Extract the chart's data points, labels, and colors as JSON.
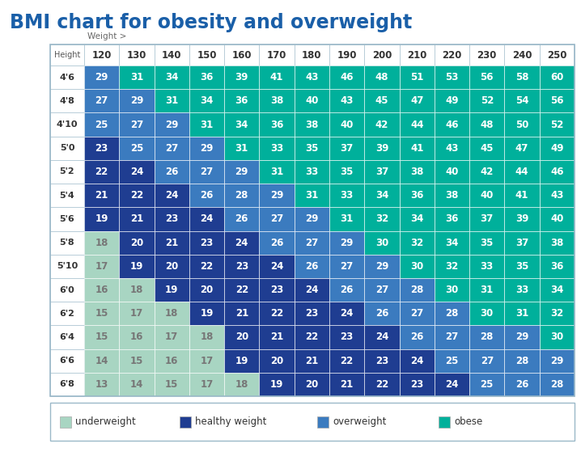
{
  "title": "BMI chart for obesity and overweight",
  "title_color": "#1a5fa8",
  "weight_label": "Weight >",
  "height_label": "Height",
  "col_headers": [
    "120",
    "130",
    "140",
    "150",
    "160",
    "170",
    "180",
    "190",
    "200",
    "210",
    "220",
    "230",
    "240",
    "250"
  ],
  "row_headers": [
    "4'6",
    "4'8",
    "4'10",
    "5'0",
    "5'2",
    "5'4",
    "5'6",
    "5'8",
    "5'10",
    "6'0",
    "6'2",
    "6'4",
    "6'6",
    "6'8"
  ],
  "bmi_values": [
    [
      29,
      31,
      34,
      36,
      39,
      41,
      43,
      46,
      48,
      51,
      53,
      56,
      58,
      60
    ],
    [
      27,
      29,
      31,
      34,
      36,
      38,
      40,
      43,
      45,
      47,
      49,
      52,
      54,
      56
    ],
    [
      25,
      27,
      29,
      31,
      34,
      36,
      38,
      40,
      42,
      44,
      46,
      48,
      50,
      52
    ],
    [
      23,
      25,
      27,
      29,
      31,
      33,
      35,
      37,
      39,
      41,
      43,
      45,
      47,
      49
    ],
    [
      22,
      24,
      26,
      27,
      29,
      31,
      33,
      35,
      37,
      38,
      40,
      42,
      44,
      46
    ],
    [
      21,
      22,
      24,
      26,
      28,
      29,
      31,
      33,
      34,
      36,
      38,
      40,
      41,
      43
    ],
    [
      19,
      21,
      23,
      24,
      26,
      27,
      29,
      31,
      32,
      34,
      36,
      37,
      39,
      40
    ],
    [
      18,
      20,
      21,
      23,
      24,
      26,
      27,
      29,
      30,
      32,
      34,
      35,
      37,
      38
    ],
    [
      17,
      19,
      20,
      22,
      23,
      24,
      26,
      27,
      29,
      30,
      32,
      33,
      35,
      36
    ],
    [
      16,
      18,
      19,
      20,
      22,
      23,
      24,
      26,
      27,
      28,
      30,
      31,
      33,
      34
    ],
    [
      15,
      17,
      18,
      19,
      21,
      22,
      23,
      24,
      26,
      27,
      28,
      30,
      31,
      32
    ],
    [
      15,
      16,
      17,
      18,
      20,
      21,
      22,
      23,
      24,
      26,
      27,
      28,
      29,
      30
    ],
    [
      14,
      15,
      16,
      17,
      19,
      20,
      21,
      22,
      23,
      24,
      25,
      27,
      28,
      29
    ],
    [
      13,
      14,
      15,
      17,
      18,
      19,
      20,
      21,
      22,
      23,
      24,
      25,
      26,
      28
    ]
  ],
  "color_underweight": "#a8d5c2",
  "color_healthy": "#1f3d91",
  "color_overweight": "#3b7bbf",
  "color_obese": "#00b09b",
  "legend_labels": [
    "underweight",
    "healthy weight",
    "overweight",
    "obese"
  ],
  "legend_colors": [
    "#a8d5c2",
    "#1f3d91",
    "#3b7bbf",
    "#00b09b"
  ],
  "bg_color": "#ffffff",
  "header_text_color": "#333333",
  "border_color": "#9ab8c8"
}
